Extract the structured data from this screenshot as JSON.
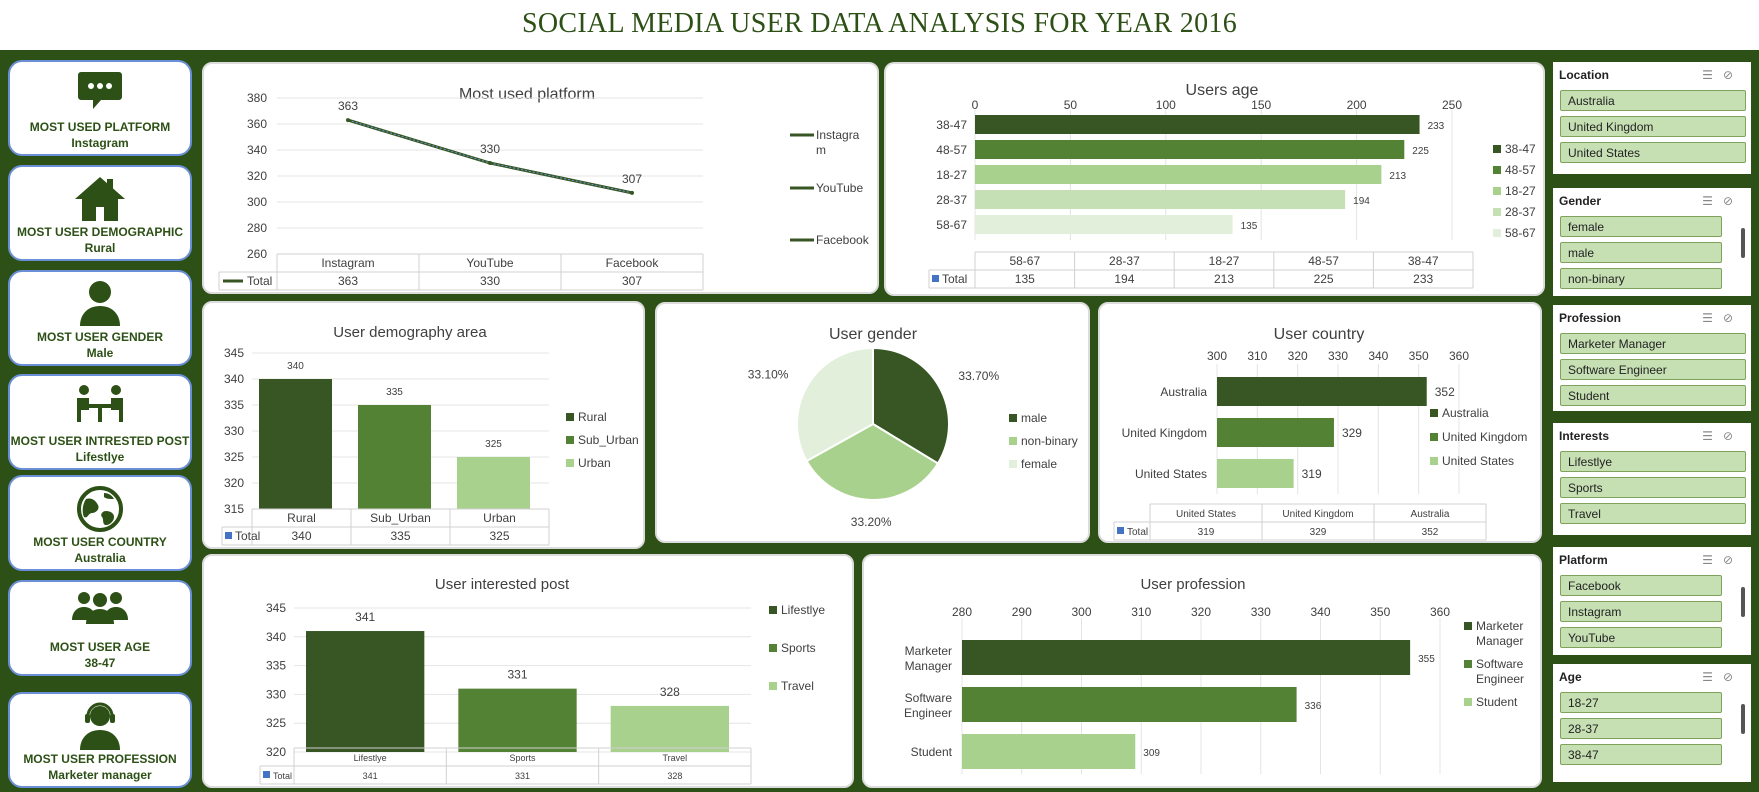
{
  "title": "SOCIAL MEDIA USER DATA ANALYSIS FOR YEAR 2016",
  "colors": {
    "dark": "#375623",
    "mid": "#548235",
    "light": "#a9d18e",
    "lighter": "#c5e0b4",
    "lightest": "#e2efda",
    "background": "#2d5016"
  },
  "kpis": [
    {
      "title": "MOST USED PLATFORM",
      "value": "Instagram",
      "icon": "chat-bubble-icon"
    },
    {
      "title": "MOST USER DEMOGRAPHIC",
      "value": "Rural",
      "icon": "house-icon"
    },
    {
      "title": "MOST USER GENDER",
      "value": "Male",
      "icon": "person-icon"
    },
    {
      "title": "MOST USER INTRESTED POST",
      "value": "Lifestlye",
      "icon": "meeting-icon"
    },
    {
      "title": "MOST USER COUNTRY",
      "value": "Australia",
      "icon": "globe-icon"
    },
    {
      "title": "MOST USER AGE",
      "value": "38-47",
      "icon": "group-icon"
    },
    {
      "title": "MOST USER PROFESSION",
      "value": "Marketer manager",
      "icon": "headset-person-icon"
    }
  ],
  "slicers": [
    {
      "header": "Location",
      "items": [
        "Australia",
        "United Kingdom",
        "United States"
      ]
    },
    {
      "header": "Gender",
      "items": [
        "female",
        "male",
        "non-binary"
      ]
    },
    {
      "header": "Profession",
      "items": [
        "Marketer Manager",
        "Software Engineer",
        "Student"
      ]
    },
    {
      "header": "Interests",
      "items": [
        "Lifestlye",
        "Sports",
        "Travel"
      ]
    },
    {
      "header": "Platform",
      "items": [
        "Facebook",
        "Instagram",
        "YouTube"
      ]
    },
    {
      "header": "Age",
      "items": [
        "18-27",
        "28-37",
        "38-47"
      ]
    }
  ],
  "chart_data": [
    {
      "id": "platform",
      "type": "line",
      "title": "Most used platform",
      "categories": [
        "Instagram",
        "YouTube",
        "Facebook"
      ],
      "values": [
        363,
        330,
        307
      ],
      "ylim": [
        260,
        380
      ],
      "yticks": [
        260,
        280,
        300,
        320,
        340,
        360,
        380
      ],
      "legend": [
        "Instagra m",
        "YouTube",
        "Facebook"
      ],
      "table_label": "Total"
    },
    {
      "id": "age",
      "type": "bar",
      "orientation": "horizontal",
      "title": "Users age",
      "categories": [
        "38-47",
        "48-57",
        "18-27",
        "28-37",
        "58-67"
      ],
      "values": [
        233,
        225,
        213,
        194,
        135
      ],
      "xlim": [
        0,
        250
      ],
      "xticks": [
        0,
        50,
        100,
        150,
        200,
        250
      ],
      "legend": [
        "38-47",
        "48-57",
        "18-27",
        "28-37",
        "58-67"
      ],
      "table_categories": [
        "58-67",
        "28-37",
        "18-27",
        "48-57",
        "38-47"
      ],
      "table_values": [
        135,
        194,
        213,
        225,
        233
      ],
      "table_label": "Total"
    },
    {
      "id": "demography",
      "type": "bar",
      "title": "User demography area",
      "categories": [
        "Rural",
        "Sub_Urban",
        "Urban"
      ],
      "values": [
        340,
        335,
        325
      ],
      "ylim": [
        315,
        345
      ],
      "yticks": [
        315,
        320,
        325,
        330,
        335,
        340,
        345
      ],
      "legend": [
        "Rural",
        "Sub_Urban",
        "Urban"
      ],
      "table_label": "Total"
    },
    {
      "id": "gender",
      "type": "pie",
      "title": "User gender",
      "categories": [
        "male",
        "non-binary",
        "female"
      ],
      "values": [
        33.7,
        33.2,
        33.1
      ],
      "labels": [
        "33.70%",
        "33.20%",
        "33.10%"
      ],
      "legend": [
        "male",
        "non-binary",
        "female"
      ]
    },
    {
      "id": "country",
      "type": "bar",
      "orientation": "horizontal",
      "title": "User country",
      "categories": [
        "Australia",
        "United Kingdom",
        "United States"
      ],
      "values": [
        352,
        329,
        319
      ],
      "xlim": [
        300,
        360
      ],
      "xticks": [
        300,
        310,
        320,
        330,
        340,
        350,
        360
      ],
      "legend": [
        "Australia",
        "United Kingdom",
        "United States"
      ],
      "table_categories": [
        "United States",
        "United Kingdom",
        "Australia"
      ],
      "table_values": [
        319,
        329,
        352
      ],
      "table_label": "Total"
    },
    {
      "id": "interest",
      "type": "bar",
      "title": "User interested post",
      "categories": [
        "Lifestlye",
        "Sports",
        "Travel"
      ],
      "values": [
        341,
        331,
        328
      ],
      "ylim": [
        320,
        345
      ],
      "yticks": [
        320,
        325,
        330,
        335,
        340,
        345
      ],
      "legend": [
        "Lifestlye",
        "Sports",
        "Travel"
      ],
      "table_label": "Total"
    },
    {
      "id": "profession",
      "type": "bar",
      "orientation": "horizontal",
      "title": "User profession",
      "categories": [
        "Marketer Manager",
        "Software Engineer",
        "Student"
      ],
      "values": [
        355,
        336,
        309
      ],
      "xlim": [
        280,
        360
      ],
      "xticks": [
        280,
        290,
        300,
        310,
        320,
        330,
        340,
        350,
        360
      ],
      "legend": [
        "Marketer Manager",
        "Software Engineer",
        "Student"
      ]
    }
  ]
}
